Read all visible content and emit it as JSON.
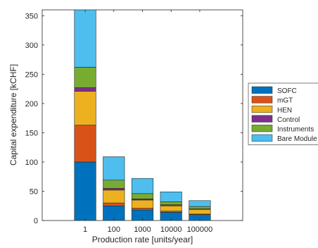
{
  "chart_data": {
    "type": "bar",
    "stacked": true,
    "categories": [
      "1",
      "100",
      "1000",
      "10000",
      "100000"
    ],
    "xlabel": "Production rate [units/year]",
    "ylabel": "Capital expenditure [kCHF]",
    "ylim": [
      0,
      360
    ],
    "yticks": [
      0,
      50,
      100,
      150,
      200,
      250,
      300,
      350
    ],
    "grid": false,
    "legend_position": "outside-right",
    "series": [
      {
        "name": "SOFC",
        "color": "#0072BD",
        "values": [
          100,
          25,
          18,
          14,
          10
        ]
      },
      {
        "name": "mGT",
        "color": "#D95319",
        "values": [
          63,
          5,
          3,
          2,
          1
        ]
      },
      {
        "name": "HEN",
        "color": "#EDB120",
        "values": [
          58,
          22,
          14,
          9,
          8
        ]
      },
      {
        "name": "Control",
        "color": "#7E2F8E",
        "values": [
          6,
          3,
          2,
          2,
          1
        ]
      },
      {
        "name": "Instruments",
        "color": "#77AC30",
        "values": [
          35,
          14,
          9,
          5,
          4
        ]
      },
      {
        "name": "Bare Module",
        "color": "#4DBEEE",
        "values": [
          98,
          40,
          26,
          17,
          10
        ]
      }
    ]
  }
}
